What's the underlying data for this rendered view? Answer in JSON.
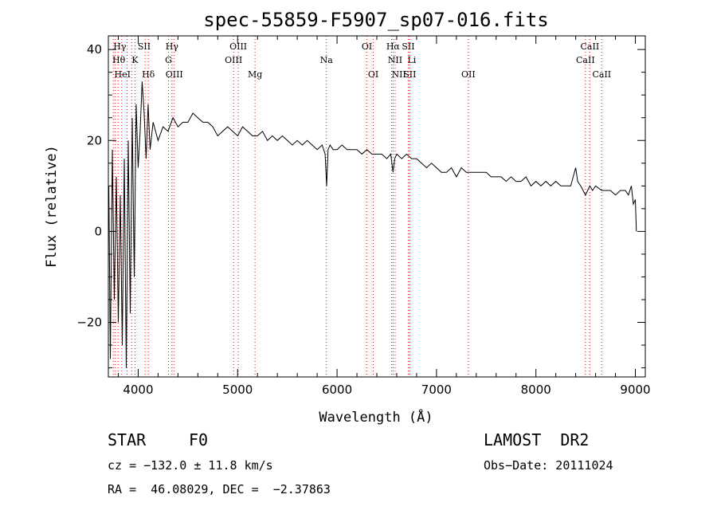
{
  "chart_data": {
    "type": "line",
    "title": "spec-55859-F5907_sp07-016.fits",
    "xlabel": "Wavelength (Å)",
    "ylabel": "Flux (relative)",
    "xlim": [
      3700,
      9100
    ],
    "ylim": [
      -32,
      43
    ],
    "xticks": [
      4000,
      5000,
      6000,
      7000,
      8000,
      9000
    ],
    "yticks": [
      -20,
      0,
      20,
      40
    ],
    "ytick_labels": [
      "−20",
      "0",
      "20",
      "40"
    ],
    "grid": false,
    "series": [
      {
        "color": "#000000",
        "x": [
          3705,
          3720,
          3740,
          3760,
          3780,
          3800,
          3820,
          3840,
          3860,
          3880,
          3900,
          3920,
          3940,
          3960,
          3980,
          4000,
          4020,
          4040,
          4060,
          4080,
          4100,
          4120,
          4150,
          4200,
          4250,
          4300,
          4350,
          4400,
          4450,
          4500,
          4550,
          4600,
          4650,
          4700,
          4750,
          4800,
          4850,
          4900,
          4950,
          5000,
          5050,
          5100,
          5150,
          5200,
          5250,
          5300,
          5350,
          5400,
          5450,
          5500,
          5550,
          5600,
          5650,
          5700,
          5750,
          5800,
          5850,
          5880,
          5895,
          5910,
          5930,
          5960,
          6000,
          6050,
          6100,
          6150,
          6200,
          6250,
          6300,
          6350,
          6400,
          6450,
          6500,
          6540,
          6563,
          6580,
          6600,
          6650,
          6700,
          6750,
          6800,
          6850,
          6900,
          6950,
          7000,
          7050,
          7100,
          7150,
          7200,
          7250,
          7300,
          7350,
          7400,
          7450,
          7500,
          7550,
          7600,
          7650,
          7700,
          7750,
          7800,
          7850,
          7900,
          7950,
          8000,
          8050,
          8100,
          8150,
          8200,
          8250,
          8300,
          8350,
          8400,
          8420,
          8450,
          8498,
          8520,
          8542,
          8570,
          8600,
          8662,
          8700,
          8750,
          8800,
          8850,
          8900,
          8930,
          8960,
          8980,
          9000,
          9010
        ],
        "y": [
          10,
          -28,
          18,
          -15,
          12,
          -20,
          8,
          -25,
          16,
          -30,
          20,
          -18,
          25,
          -10,
          28,
          14,
          22,
          33,
          26,
          16,
          28,
          18,
          24,
          20,
          23,
          22,
          25,
          23,
          24,
          24,
          26,
          25,
          24,
          24,
          23,
          21,
          22,
          23,
          22,
          21,
          23,
          22,
          21,
          21,
          22,
          20,
          21,
          20,
          21,
          20,
          19,
          20,
          19,
          20,
          19,
          18,
          19,
          17,
          10,
          18,
          19,
          18,
          18,
          19,
          18,
          18,
          18,
          17,
          18,
          17,
          17,
          17,
          16,
          17,
          13,
          16,
          17,
          16,
          17,
          16,
          16,
          15,
          14,
          15,
          14,
          13,
          13,
          14,
          12,
          14,
          13,
          13,
          13,
          13,
          13,
          12,
          12,
          12,
          11,
          12,
          11,
          11,
          12,
          10,
          11,
          10,
          11,
          10,
          11,
          10,
          10,
          10,
          14,
          11,
          10,
          8,
          9,
          10,
          9,
          10,
          9,
          9,
          9,
          8,
          9,
          9,
          8,
          10,
          6,
          7,
          0
        ]
      }
    ],
    "line_markers": [
      {
        "label": "Hγ",
        "x": 3750,
        "row": 0,
        "align": "start"
      },
      {
        "label": "Hθ",
        "x": 3740,
        "row": 1,
        "align": "start"
      },
      {
        "label": "K",
        "x": 3934,
        "row": 1,
        "align": "start"
      },
      {
        "label": "HeI",
        "x": 3760,
        "row": 2,
        "align": "start"
      },
      {
        "label": "Hδ",
        "x": 4102,
        "row": 2,
        "align": "middle"
      },
      {
        "label": "SII",
        "x": 4060,
        "row": 0,
        "align": "middle"
      },
      {
        "label": "Hγ",
        "x": 4340,
        "row": 0,
        "align": "middle"
      },
      {
        "label": "G",
        "x": 4305,
        "row": 1,
        "align": "middle"
      },
      {
        "label": "OIII",
        "x": 4363,
        "row": 2,
        "align": "middle"
      },
      {
        "label": "OIII",
        "x": 5007,
        "row": 0,
        "align": "middle"
      },
      {
        "label": "OIII",
        "x": 4959,
        "row": 1,
        "align": "middle"
      },
      {
        "label": "Mg",
        "x": 5175,
        "row": 2,
        "align": "middle"
      },
      {
        "label": "Na",
        "x": 5893,
        "row": 1,
        "align": "middle"
      },
      {
        "label": "OI",
        "x": 6300,
        "row": 0,
        "align": "middle"
      },
      {
        "label": "OI",
        "x": 6364,
        "row": 2,
        "align": "middle"
      },
      {
        "label": "Hα",
        "x": 6563,
        "row": 0,
        "align": "middle"
      },
      {
        "label": "SII",
        "x": 6716,
        "row": 0,
        "align": "middle"
      },
      {
        "label": "NII",
        "x": 6584,
        "row": 1,
        "align": "middle"
      },
      {
        "label": "Li",
        "x": 6708,
        "row": 1,
        "align": "start"
      },
      {
        "label": "NII",
        "x": 6548,
        "row": 2,
        "align": "start"
      },
      {
        "label": "SII",
        "x": 6731,
        "row": 2,
        "align": "middle"
      },
      {
        "label": "OII",
        "x": 7320,
        "row": 2,
        "align": "middle"
      },
      {
        "label": "CaII",
        "x": 8542,
        "row": 0,
        "align": "middle"
      },
      {
        "label": "CaII",
        "x": 8498,
        "row": 1,
        "align": "middle"
      },
      {
        "label": "CaII",
        "x": 8662,
        "row": 2,
        "align": "middle"
      }
    ],
    "marker_lines_x": [
      3750,
      3770,
      3798,
      3835,
      3889,
      3934,
      3969,
      4070,
      4102,
      4305,
      4340,
      4363,
      4959,
      5007,
      5175,
      5893,
      6300,
      6364,
      6548,
      6563,
      6584,
      6716,
      6731,
      7320,
      8498,
      8542,
      8662
    ],
    "marker_color": "#ff0000"
  },
  "info": {
    "object_type": "STAR",
    "subclass": "F0",
    "survey": "LAMOST  DR2",
    "cz": "cz = −132.0 ± 11.8 km/s",
    "obs_date": "Obs−Date: 20111024",
    "coords": "RA =  46.08029, DEC =  −2.37863"
  }
}
